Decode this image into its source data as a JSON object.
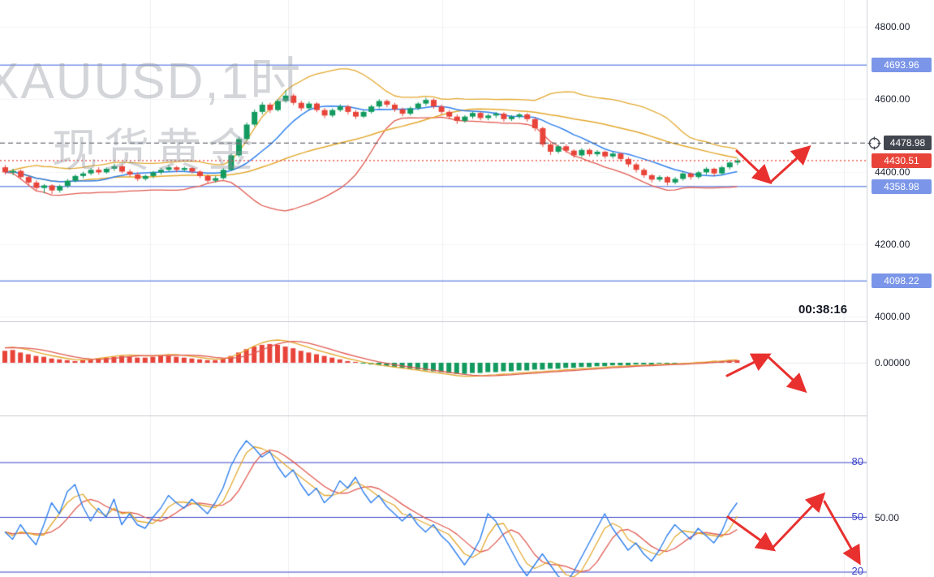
{
  "meta": {
    "watermark_line1": "XAUUSD,1时",
    "watermark_line2": "现货黄金",
    "countdown": "00:38:16"
  },
  "colors": {
    "up": "#129a5f",
    "down": "#e8443a",
    "ma_fast": "#2f80ed",
    "ma_slow": "#e3a82e",
    "band": "#e05a50",
    "level_line": "#7b96e8",
    "crosshair": "#42464f",
    "stoch_guide": "#3b44c8",
    "arrow": "#e8312f",
    "axis_text": "#1c2030"
  },
  "axis": {
    "main_ticks": [
      {
        "label": "4800.00",
        "value": 4800
      },
      {
        "label": "4600.00",
        "value": 4600
      },
      {
        "label": "4400.00",
        "value": 4400
      },
      {
        "label": "4200.00",
        "value": 4200
      },
      {
        "label": "4000.00",
        "value": 4000
      }
    ],
    "badges": [
      {
        "label": "4693.96",
        "value": 4693.96,
        "type": "level"
      },
      {
        "label": "4478.98",
        "value": 4478.98,
        "type": "crosshair"
      },
      {
        "label": "4430.51",
        "value": 4430.51,
        "type": "last"
      },
      {
        "label": "4358.98",
        "value": 4358.98,
        "type": "level"
      },
      {
        "label": "4098.22",
        "value": 4098.22,
        "type": "level"
      }
    ],
    "macd_tick": {
      "label": "0.00000",
      "value": 0
    },
    "stoch_tick": {
      "label": "50.00",
      "value": 50
    },
    "stoch_guide_labels": [
      {
        "label": "80",
        "value": 80
      },
      {
        "label": "50",
        "value": 50
      },
      {
        "label": "20",
        "value": 20
      }
    ]
  },
  "chart_data": [
    {
      "type": "candlestick",
      "symbol": "XAUUSD",
      "interval": "1时",
      "title": "XAUUSD 1H spot gold",
      "ylim": [
        4000,
        4800
      ],
      "y_ticks": [
        4000,
        4200,
        4400,
        4600,
        4800
      ],
      "levels": [
        4693.96,
        4358.98,
        4098.22
      ],
      "crosshair_price": 4478.98,
      "last_price": 4430.51,
      "overlays": [
        "SMA10 blue",
        "SMA30 yellow",
        "BOLL upper yellow",
        "BOLL lower red"
      ],
      "candles": [
        [
          4412,
          4418,
          4392,
          4398
        ],
        [
          4398,
          4408,
          4390,
          4402
        ],
        [
          4402,
          4406,
          4380,
          4385
        ],
        [
          4385,
          4390,
          4362,
          4370
        ],
        [
          4370,
          4376,
          4348,
          4355
        ],
        [
          4355,
          4366,
          4340,
          4362
        ],
        [
          4362,
          4365,
          4338,
          4348
        ],
        [
          4348,
          4364,
          4342,
          4360
        ],
        [
          4360,
          4380,
          4355,
          4375
        ],
        [
          4375,
          4392,
          4370,
          4388
        ],
        [
          4388,
          4400,
          4382,
          4395
        ],
        [
          4395,
          4410,
          4390,
          4405
        ],
        [
          4405,
          4412,
          4392,
          4398
        ],
        [
          4398,
          4412,
          4394,
          4408
        ],
        [
          4408,
          4422,
          4402,
          4415
        ],
        [
          4415,
          4420,
          4396,
          4400
        ],
        [
          4400,
          4406,
          4386,
          4392
        ],
        [
          4392,
          4398,
          4374,
          4380
        ],
        [
          4380,
          4392,
          4375,
          4388
        ],
        [
          4388,
          4402,
          4382,
          4398
        ],
        [
          4398,
          4410,
          4392,
          4405
        ],
        [
          4405,
          4418,
          4400,
          4412
        ],
        [
          4412,
          4416,
          4398,
          4405
        ],
        [
          4405,
          4414,
          4400,
          4410
        ],
        [
          4410,
          4413,
          4395,
          4400
        ],
        [
          4400,
          4404,
          4382,
          4388
        ],
        [
          4388,
          4392,
          4368,
          4375
        ],
        [
          4375,
          4388,
          4370,
          4382
        ],
        [
          4382,
          4410,
          4378,
          4405
        ],
        [
          4405,
          4450,
          4402,
          4445
        ],
        [
          4445,
          4496,
          4440,
          4490
        ],
        [
          4490,
          4536,
          4486,
          4530
        ],
        [
          4530,
          4572,
          4525,
          4565
        ],
        [
          4565,
          4592,
          4558,
          4585
        ],
        [
          4585,
          4590,
          4562,
          4570
        ],
        [
          4570,
          4600,
          4566,
          4595
        ],
        [
          4595,
          4625,
          4590,
          4610
        ],
        [
          4610,
          4615,
          4584,
          4590
        ],
        [
          4590,
          4596,
          4568,
          4575
        ],
        [
          4575,
          4594,
          4570,
          4588
        ],
        [
          4588,
          4592,
          4564,
          4570
        ],
        [
          4570,
          4576,
          4548,
          4555
        ],
        [
          4555,
          4575,
          4550,
          4570
        ],
        [
          4570,
          4586,
          4565,
          4580
        ],
        [
          4580,
          4584,
          4558,
          4565
        ],
        [
          4565,
          4570,
          4545,
          4552
        ],
        [
          4552,
          4570,
          4548,
          4565
        ],
        [
          4565,
          4585,
          4560,
          4580
        ],
        [
          4580,
          4600,
          4575,
          4595
        ],
        [
          4595,
          4599,
          4578,
          4585
        ],
        [
          4585,
          4590,
          4565,
          4572
        ],
        [
          4572,
          4577,
          4553,
          4560
        ],
        [
          4560,
          4580,
          4555,
          4575
        ],
        [
          4575,
          4592,
          4570,
          4588
        ],
        [
          4588,
          4604,
          4582,
          4598
        ],
        [
          4598,
          4602,
          4574,
          4580
        ],
        [
          4580,
          4585,
          4558,
          4565
        ],
        [
          4565,
          4570,
          4545,
          4552
        ],
        [
          4552,
          4558,
          4532,
          4540
        ],
        [
          4540,
          4556,
          4535,
          4552
        ],
        [
          4552,
          4566,
          4546,
          4562
        ],
        [
          4562,
          4566,
          4542,
          4548
        ],
        [
          4548,
          4560,
          4542,
          4555
        ],
        [
          4555,
          4565,
          4548,
          4560
        ],
        [
          4560,
          4564,
          4538,
          4545
        ],
        [
          4545,
          4556,
          4540,
          4552
        ],
        [
          4552,
          4562,
          4546,
          4558
        ],
        [
          4558,
          4562,
          4538,
          4545
        ],
        [
          4545,
          4550,
          4512,
          4520
        ],
        [
          4520,
          4524,
          4468,
          4475
        ],
        [
          4475,
          4480,
          4446,
          4455
        ],
        [
          4455,
          4474,
          4450,
          4470
        ],
        [
          4470,
          4475,
          4452,
          4458
        ],
        [
          4458,
          4462,
          4438,
          4445
        ],
        [
          4445,
          4465,
          4440,
          4460
        ],
        [
          4460,
          4464,
          4442,
          4448
        ],
        [
          4448,
          4460,
          4442,
          4455
        ],
        [
          4455,
          4458,
          4436,
          4442
        ],
        [
          4442,
          4455,
          4436,
          4450
        ],
        [
          4450,
          4453,
          4428,
          4435
        ],
        [
          4435,
          4440,
          4413,
          4420
        ],
        [
          4420,
          4425,
          4398,
          4405
        ],
        [
          4405,
          4410,
          4383,
          4390
        ],
        [
          4390,
          4394,
          4370,
          4378
        ],
        [
          4378,
          4390,
          4372,
          4385
        ],
        [
          4385,
          4388,
          4362,
          4370
        ],
        [
          4370,
          4385,
          4365,
          4380
        ],
        [
          4380,
          4400,
          4375,
          4395
        ],
        [
          4395,
          4398,
          4378,
          4385
        ],
        [
          4385,
          4402,
          4380,
          4398
        ],
        [
          4398,
          4412,
          4392,
          4408
        ],
        [
          4408,
          4411,
          4388,
          4395
        ],
        [
          4395,
          4416,
          4390,
          4412
        ],
        [
          4412,
          4428,
          4406,
          4425
        ],
        [
          4425,
          4436,
          4418,
          4430.51
        ]
      ]
    },
    {
      "type": "bar",
      "name": "MACD histogram",
      "zero_label": "0.00000",
      "positive_color": "#e8443a",
      "negative_color": "#129a5f",
      "values": [
        14,
        15,
        12,
        10,
        8,
        7,
        5,
        4,
        3,
        2,
        3,
        4,
        5,
        6,
        7,
        8,
        7,
        6,
        6,
        7,
        8,
        8,
        7,
        6,
        5,
        4,
        3,
        3,
        5,
        8,
        12,
        16,
        19,
        21,
        22,
        21,
        19,
        17,
        14,
        12,
        10,
        8,
        6,
        4,
        2,
        1,
        -1,
        -2,
        -3,
        -4,
        -5,
        -6,
        -7,
        -8,
        -9,
        -10,
        -11,
        -12,
        -13,
        -13,
        -12,
        -12,
        -11,
        -11,
        -10,
        -10,
        -9,
        -9,
        -8,
        -8,
        -7,
        -7,
        -6,
        -6,
        -5,
        -5,
        -4,
        -4,
        -3,
        -3,
        -3,
        -2,
        -2,
        -2,
        -1,
        -1,
        -1,
        0,
        0,
        1,
        1,
        2,
        2,
        3,
        3
      ]
    },
    {
      "type": "line",
      "name": "Stochastic oscillator",
      "guides": [
        80,
        50,
        20
      ],
      "ylim": [
        0,
        100
      ],
      "k_values": [
        42,
        38,
        46,
        40,
        35,
        46,
        58,
        52,
        64,
        68,
        56,
        48,
        55,
        50,
        60,
        46,
        52,
        46,
        44,
        50,
        55,
        62,
        58,
        55,
        60,
        56,
        52,
        58,
        66,
        78,
        86,
        92,
        88,
        83,
        86,
        78,
        72,
        76,
        68,
        62,
        66,
        58,
        62,
        70,
        66,
        72,
        64,
        58,
        62,
        56,
        52,
        48,
        52,
        46,
        42,
        46,
        40,
        36,
        30,
        24,
        30,
        38,
        52,
        48,
        40,
        32,
        24,
        18,
        24,
        30,
        24,
        18,
        14,
        20,
        28,
        36,
        44,
        52,
        44,
        38,
        32,
        36,
        30,
        26,
        32,
        40,
        46,
        42,
        38,
        44,
        40,
        36,
        42,
        52,
        58
      ]
    }
  ],
  "annotations": [
    {
      "panel": "main",
      "from": [
        908,
        186
      ],
      "to": [
        946,
        222
      ]
    },
    {
      "panel": "main",
      "from": [
        950,
        224
      ],
      "to": [
        994,
        184
      ]
    },
    {
      "panel": "macd",
      "from": [
        896,
        463
      ],
      "to": [
        944,
        439
      ]
    },
    {
      "panel": "macd",
      "from": [
        948,
        441
      ],
      "to": [
        989,
        479
      ]
    },
    {
      "panel": "stoch",
      "from": [
        897,
        637
      ],
      "to": [
        950,
        675
      ]
    },
    {
      "panel": "stoch",
      "from": [
        952,
        675
      ],
      "to": [
        1012,
        612
      ]
    },
    {
      "panel": "stoch",
      "from": [
        1016,
        618
      ],
      "to": [
        1057,
        690
      ]
    }
  ]
}
